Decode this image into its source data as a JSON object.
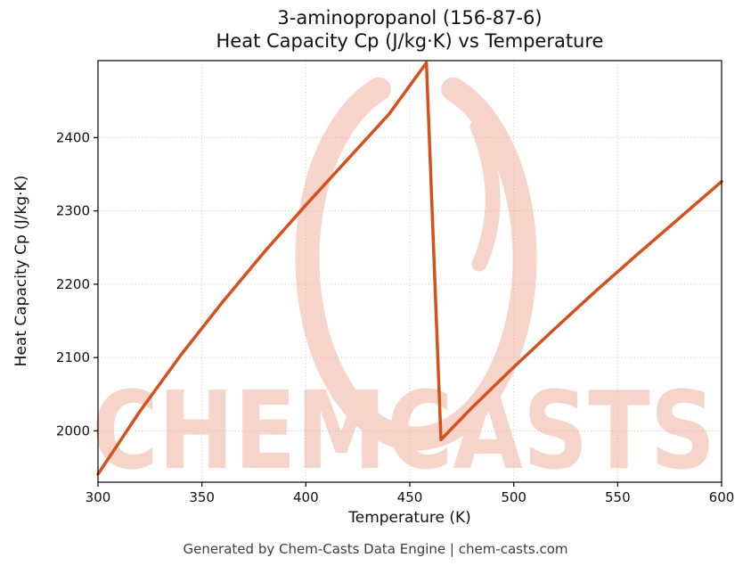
{
  "chart_data": {
    "type": "line",
    "title_line1": "3-aminopropanol (156-87-6)",
    "title_line2": "Heat Capacity Cp (J/kg·K) vs Temperature",
    "xlabel": "Temperature (K)",
    "ylabel": "Heat Capacity Cp (J/kg·K)",
    "xlim": [
      300,
      600
    ],
    "ylim": [
      1930,
      2505
    ],
    "xticks": [
      300,
      350,
      400,
      450,
      500,
      550,
      600
    ],
    "yticks": [
      2000,
      2100,
      2200,
      2300,
      2400
    ],
    "grid": true,
    "grid_color": "#cccccc",
    "line_color": "#d4511e",
    "legend": "none",
    "series": [
      {
        "name": "Heat Capacity Cp (J/kg·K)",
        "points": [
          [
            300,
            1941
          ],
          [
            320,
            2026
          ],
          [
            340,
            2104
          ],
          [
            360,
            2176
          ],
          [
            380,
            2244
          ],
          [
            400,
            2308
          ],
          [
            420,
            2370
          ],
          [
            440,
            2432
          ],
          [
            458,
            2502
          ],
          [
            465,
            1988
          ],
          [
            480,
            2032
          ],
          [
            500,
            2087
          ],
          [
            520,
            2140
          ],
          [
            540,
            2192
          ],
          [
            560,
            2242
          ],
          [
            580,
            2291
          ],
          [
            600,
            2340
          ]
        ]
      }
    ]
  },
  "watermark": {
    "text": "CHEMCASTS",
    "color": "#efa28c"
  },
  "footer": "Generated by Chem-Casts Data Engine | chem-casts.com"
}
